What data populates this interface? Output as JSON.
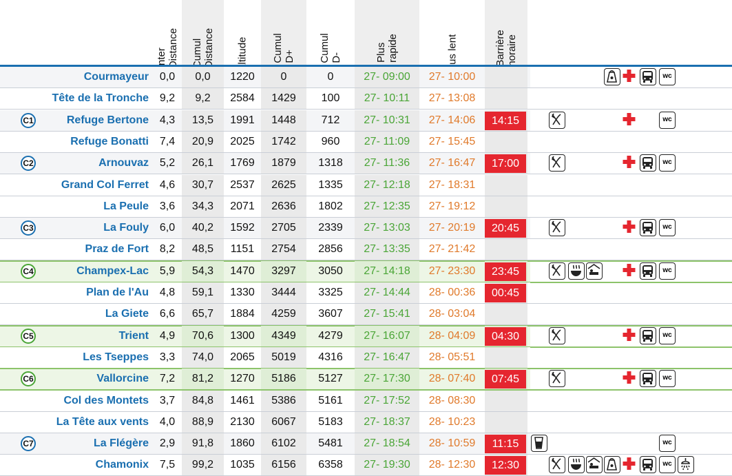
{
  "headers": [
    {
      "key": "inter",
      "lines": [
        "Inter",
        "Distance"
      ]
    },
    {
      "key": "cumul_dist",
      "lines": [
        "Cumul",
        "Distance"
      ]
    },
    {
      "key": "alt",
      "lines": [
        "Altitude"
      ]
    },
    {
      "key": "dplus",
      "lines": [
        "Cumul",
        "D+"
      ]
    },
    {
      "key": "dminus",
      "lines": [
        "Cumul",
        "D-"
      ]
    },
    {
      "key": "fast",
      "lines": [
        "Plus",
        "rapide"
      ]
    },
    {
      "key": "slow",
      "lines": [
        "Plus lent"
      ]
    },
    {
      "key": "barrier",
      "lines": [
        "Barrière",
        "horaire"
      ]
    }
  ],
  "rows": [
    {
      "cp": "",
      "name": "Courmayeur",
      "inter": "0,0",
      "cumul": "0,0",
      "alt": "1220",
      "dplus": "0",
      "dminus": "0",
      "fast": "27- 09:00",
      "slow": "27- 10:00",
      "barrier": "",
      "style": "norm",
      "icons": [
        "bag",
        "aid",
        "bus",
        "wc"
      ]
    },
    {
      "cp": "",
      "name": "Tête de la Tronche",
      "inter": "9,2",
      "cumul": "9,2",
      "alt": "2584",
      "dplus": "1429",
      "dminus": "100",
      "fast": "27- 10:11",
      "slow": "27- 13:08",
      "barrier": "",
      "style": "alt",
      "icons": []
    },
    {
      "cp": "C1",
      "name": "Refuge Bertone",
      "inter": "4,3",
      "cumul": "13,5",
      "alt": "1991",
      "dplus": "1448",
      "dminus": "712",
      "fast": "27- 10:31",
      "slow": "27- 14:06",
      "barrier": "14:15",
      "style": "norm",
      "icons": [
        "food",
        "aid",
        "wc"
      ]
    },
    {
      "cp": "",
      "name": "Refuge Bonatti",
      "inter": "7,4",
      "cumul": "20,9",
      "alt": "2025",
      "dplus": "1742",
      "dminus": "960",
      "fast": "27- 11:09",
      "slow": "27- 15:45",
      "barrier": "",
      "style": "alt",
      "icons": []
    },
    {
      "cp": "C2",
      "name": "Arnouvaz",
      "inter": "5,2",
      "cumul": "26,1",
      "alt": "1769",
      "dplus": "1879",
      "dminus": "1318",
      "fast": "27- 11:36",
      "slow": "27- 16:47",
      "barrier": "17:00",
      "style": "norm",
      "icons": [
        "food",
        "aid",
        "bus",
        "wc"
      ]
    },
    {
      "cp": "",
      "name": "Grand Col Ferret",
      "inter": "4,6",
      "cumul": "30,7",
      "alt": "2537",
      "dplus": "2625",
      "dminus": "1335",
      "fast": "27- 12:18",
      "slow": "27- 18:31",
      "barrier": "",
      "style": "alt",
      "icons": []
    },
    {
      "cp": "",
      "name": "La Peule",
      "inter": "3,6",
      "cumul": "34,3",
      "alt": "2071",
      "dplus": "2636",
      "dminus": "1802",
      "fast": "27- 12:35",
      "slow": "27- 19:12",
      "barrier": "",
      "style": "alt",
      "icons": []
    },
    {
      "cp": "C3",
      "name": "La Fouly",
      "inter": "6,0",
      "cumul": "40,2",
      "alt": "1592",
      "dplus": "2705",
      "dminus": "2339",
      "fast": "27- 13:03",
      "slow": "27- 20:19",
      "barrier": "20:45",
      "style": "norm",
      "icons": [
        "food",
        "aid",
        "bus",
        "wc"
      ]
    },
    {
      "cp": "",
      "name": "Praz de Fort",
      "inter": "8,2",
      "cumul": "48,5",
      "alt": "1151",
      "dplus": "2754",
      "dminus": "2856",
      "fast": "27- 13:35",
      "slow": "27- 21:42",
      "barrier": "",
      "style": "alt",
      "icons": []
    },
    {
      "cp": "C4",
      "name": "Champex-Lac",
      "inter": "5,9",
      "cumul": "54,3",
      "alt": "1470",
      "dplus": "3297",
      "dminus": "3050",
      "fast": "27- 14:18",
      "slow": "27- 23:30",
      "barrier": "23:45",
      "style": "green",
      "icons": [
        "food",
        "soup",
        "bed",
        "aid",
        "bus",
        "wc"
      ]
    },
    {
      "cp": "",
      "name": "Plan de l'Au",
      "inter": "4,8",
      "cumul": "59,1",
      "alt": "1330",
      "dplus": "3444",
      "dminus": "3325",
      "fast": "27- 14:44",
      "slow": "28- 00:36",
      "barrier": "00:45",
      "style": "alt",
      "icons": []
    },
    {
      "cp": "",
      "name": "La Giete",
      "inter": "6,6",
      "cumul": "65,7",
      "alt": "1884",
      "dplus": "4259",
      "dminus": "3607",
      "fast": "27- 15:41",
      "slow": "28- 03:04",
      "barrier": "",
      "style": "alt",
      "icons": []
    },
    {
      "cp": "C5",
      "name": "Trient",
      "inter": "4,9",
      "cumul": "70,6",
      "alt": "1300",
      "dplus": "4349",
      "dminus": "4279",
      "fast": "27- 16:07",
      "slow": "28- 04:09",
      "barrier": "04:30",
      "style": "green",
      "icons": [
        "food",
        "aid",
        "bus",
        "wc"
      ]
    },
    {
      "cp": "",
      "name": "Les Tseppes",
      "inter": "3,3",
      "cumul": "74,0",
      "alt": "2065",
      "dplus": "5019",
      "dminus": "4316",
      "fast": "27- 16:47",
      "slow": "28- 05:51",
      "barrier": "",
      "style": "alt",
      "icons": []
    },
    {
      "cp": "C6",
      "name": "Vallorcine",
      "inter": "7,2",
      "cumul": "81,2",
      "alt": "1270",
      "dplus": "5186",
      "dminus": "5127",
      "fast": "27- 17:30",
      "slow": "28- 07:40",
      "barrier": "07:45",
      "style": "green",
      "icons": [
        "food",
        "aid",
        "bus",
        "wc"
      ]
    },
    {
      "cp": "",
      "name": "Col des Montets",
      "inter": "3,7",
      "cumul": "84,8",
      "alt": "1461",
      "dplus": "5386",
      "dminus": "5161",
      "fast": "27- 17:52",
      "slow": "28- 08:30",
      "barrier": "",
      "style": "alt",
      "icons": []
    },
    {
      "cp": "",
      "name": "La Tête aux vents",
      "inter": "4,0",
      "cumul": "88,9",
      "alt": "2130",
      "dplus": "6067",
      "dminus": "5183",
      "fast": "27- 18:37",
      "slow": "28- 10:23",
      "barrier": "",
      "style": "alt",
      "icons": []
    },
    {
      "cp": "C7",
      "name": "La Flégère",
      "inter": "2,9",
      "cumul": "91,8",
      "alt": "1860",
      "dplus": "6102",
      "dminus": "5481",
      "fast": "27- 18:54",
      "slow": "28- 10:59",
      "barrier": "11:15",
      "style": "norm",
      "icons": [
        "drink",
        "wc"
      ]
    },
    {
      "cp": "",
      "name": "Chamonix",
      "inter": "7,5",
      "cumul": "99,2",
      "alt": "1035",
      "dplus": "6156",
      "dminus": "6358",
      "fast": "27- 19:30",
      "slow": "28- 12:30",
      "barrier": "12:30",
      "style": "alt",
      "icons": [
        "food",
        "soup",
        "bed",
        "bag",
        "aid",
        "bus",
        "wc",
        "shower"
      ]
    }
  ],
  "icon_names": {
    "food": "fork-knife-icon",
    "soup": "hot-meal-icon",
    "bed": "bed-icon",
    "bag": "bag-icon",
    "aid": "first-aid-icon",
    "bus": "bus-icon",
    "wc": "wc-icon",
    "drink": "drink-icon",
    "shower": "shower-icon"
  },
  "colors": {
    "blue": "#1a6fb0",
    "green": "#4aa536",
    "orange": "#e07a2b",
    "red": "#e5262f",
    "green_border": "#8cc36a"
  }
}
